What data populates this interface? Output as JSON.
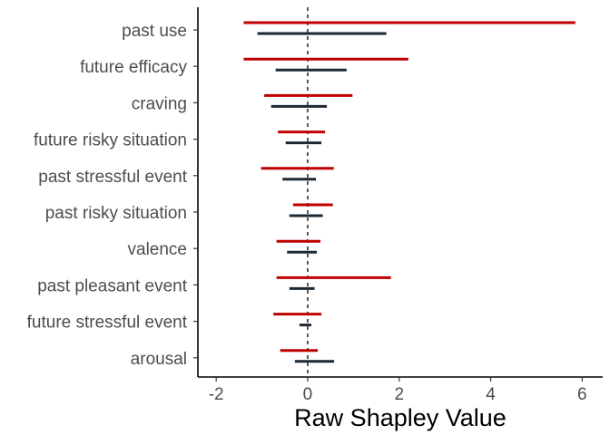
{
  "chart_data": {
    "type": "interval",
    "title": "",
    "xlabel": "Raw Shapley Value",
    "ylabel": "",
    "xlim": [
      -2.4,
      6.45
    ],
    "xticks": [
      -2,
      0,
      2,
      4,
      6
    ],
    "xtick_labels": [
      "-2",
      "0",
      "2",
      "4",
      "6"
    ],
    "reference_line": {
      "x": 0,
      "style": "dashed"
    },
    "grid": false,
    "legend": "none",
    "categories": [
      "past use",
      "future efficacy",
      "craving",
      "future risky situation",
      "past stressful event",
      "past risky situation",
      "valence",
      "past pleasant event",
      "future stressful event",
      "arousal"
    ],
    "series": [
      {
        "color": "#c00000",
        "intervals": [
          [
            -1.4,
            5.85
          ],
          [
            -1.4,
            2.2
          ],
          [
            -0.95,
            0.98
          ],
          [
            -0.65,
            0.38
          ],
          [
            -1.02,
            0.57
          ],
          [
            -0.32,
            0.55
          ],
          [
            -0.68,
            0.28
          ],
          [
            -0.68,
            1.82
          ],
          [
            -0.75,
            0.3
          ],
          [
            -0.6,
            0.22
          ]
        ]
      },
      {
        "color": "#1c2833",
        "intervals": [
          [
            -1.1,
            1.72
          ],
          [
            -0.7,
            0.85
          ],
          [
            -0.8,
            0.42
          ],
          [
            -0.48,
            0.3
          ],
          [
            -0.55,
            0.18
          ],
          [
            -0.4,
            0.33
          ],
          [
            -0.45,
            0.2
          ],
          [
            -0.4,
            0.15
          ],
          [
            -0.18,
            0.08
          ],
          [
            -0.28,
            0.58
          ]
        ]
      }
    ]
  }
}
